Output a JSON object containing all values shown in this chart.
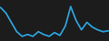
{
  "x": [
    0,
    1,
    2,
    3,
    4,
    5,
    6,
    7,
    8,
    9,
    10,
    11,
    12,
    13,
    14,
    15,
    16,
    17,
    18,
    19,
    20
  ],
  "y": [
    0.7,
    0.4,
    -0.1,
    -0.6,
    -0.85,
    -0.75,
    -0.85,
    -0.6,
    -0.75,
    -0.85,
    -0.65,
    -0.8,
    -0.3,
    0.75,
    0.0,
    -0.5,
    -0.1,
    -0.35,
    -0.5,
    -0.6,
    -0.55
  ],
  "line_color": "#2d9fd8",
  "bg_color": "#1c1c1c",
  "linewidth": 1.3,
  "ylim_min": -1.1,
  "ylim_max": 1.1
}
